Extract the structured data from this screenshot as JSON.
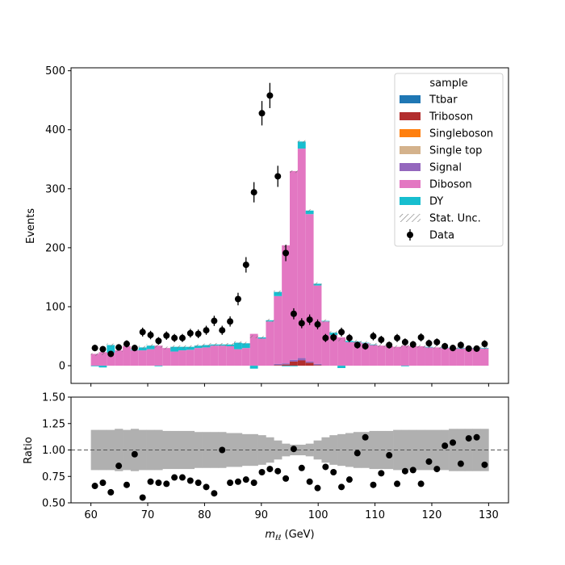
{
  "chart_data": [
    {
      "type": "bar",
      "panel": "main",
      "stacked": true,
      "ylabel": "Events",
      "xlim": [
        56.5,
        133.5
      ],
      "ylim": [
        -30,
        505
      ],
      "yticks": [
        0,
        100,
        200,
        300,
        400,
        500
      ],
      "bin_edges_start": 60,
      "bin_width": 1.4,
      "bin_count": 50,
      "series": [
        {
          "name": "DY",
          "color": "#17becf",
          "values": [
            -1,
            -3,
            13,
            0,
            0,
            1,
            5,
            6,
            -1,
            0,
            8,
            6,
            5,
            4,
            4,
            2,
            2,
            3,
            11,
            8,
            -5,
            2,
            2,
            7,
            -1,
            -1,
            12,
            6,
            3,
            1,
            4,
            -4,
            2,
            1,
            1,
            1,
            0,
            0,
            0,
            -1,
            0,
            0,
            1,
            0,
            1,
            0,
            1,
            0,
            1,
            1
          ]
        },
        {
          "name": "Diboson",
          "color": "#e377c2",
          "values": [
            20,
            23,
            22,
            26,
            33,
            26,
            26,
            28,
            34,
            30,
            24,
            26,
            27,
            30,
            31,
            34,
            34,
            33,
            28,
            30,
            54,
            46,
            75,
            115,
            200,
            320,
            355,
            250,
            133,
            75,
            52,
            48,
            40,
            40,
            38,
            35,
            34,
            33,
            32,
            34,
            33,
            33,
            31,
            31,
            30,
            30,
            29,
            30,
            29,
            29
          ]
        },
        {
          "name": "Signal",
          "color": "#9467bd",
          "values": [
            0,
            0,
            0,
            0,
            0,
            0,
            0,
            0,
            0,
            0,
            0,
            0,
            0,
            0,
            0,
            0,
            0,
            0,
            0,
            0,
            0,
            0,
            0,
            2,
            2,
            3,
            4,
            2,
            2,
            0,
            0,
            0,
            0,
            0,
            0,
            0,
            0,
            0,
            0,
            0,
            0,
            0,
            0,
            0,
            0,
            0,
            0,
            0,
            0,
            0
          ]
        },
        {
          "name": "Single top",
          "color": "#d4b28c",
          "values": [
            0,
            0,
            0,
            0,
            0,
            0,
            0,
            0,
            0,
            0,
            0,
            0,
            0,
            0,
            0,
            0,
            0,
            0,
            0,
            0,
            0,
            0,
            0,
            0,
            0,
            0,
            0,
            0,
            0,
            0,
            0,
            0,
            0,
            0,
            0,
            0,
            0,
            0,
            0,
            0,
            0,
            0,
            0,
            0,
            0,
            0,
            0,
            0,
            0,
            0
          ]
        },
        {
          "name": "Singleboson",
          "color": "#ff7f0e",
          "values": [
            0,
            0,
            0,
            0,
            0,
            0,
            0,
            0,
            0,
            0,
            0,
            0,
            0,
            0,
            0,
            0,
            0,
            0,
            0,
            0,
            0,
            0,
            0,
            0,
            0,
            0,
            0,
            0,
            0,
            0,
            0,
            0,
            0,
            0,
            0,
            0,
            0,
            0,
            0,
            0,
            0,
            0,
            0,
            0,
            0,
            0,
            0,
            0,
            0,
            0
          ]
        },
        {
          "name": "Triboson",
          "color": "#b22e2e",
          "values": [
            0,
            0,
            0,
            0,
            0,
            0,
            0,
            0,
            0,
            0,
            0,
            0,
            0,
            0,
            0,
            0,
            0,
            0,
            0,
            0,
            0,
            0,
            0,
            1,
            2,
            7,
            9,
            5,
            1,
            0,
            0,
            0,
            0,
            0,
            0,
            0,
            0,
            0,
            0,
            0,
            0,
            0,
            0,
            0,
            0,
            0,
            0,
            0,
            0,
            0
          ]
        },
        {
          "name": "Ttbar",
          "color": "#1f77b4",
          "values": [
            0,
            0,
            0,
            0,
            0,
            0,
            0,
            0,
            0,
            0,
            0,
            0,
            0,
            0,
            0,
            0,
            0,
            0,
            0,
            0,
            0,
            0,
            0,
            0,
            0,
            0,
            0,
            0,
            0,
            0,
            0,
            0,
            0,
            0,
            0,
            0,
            0,
            0,
            0,
            0,
            0,
            0,
            0,
            0,
            0,
            0,
            0,
            0,
            0,
            0
          ]
        }
      ],
      "stat_unc": {
        "name": "Stat. Unc.",
        "relative": [
          0.19,
          0.19,
          0.19,
          0.2,
          0.19,
          0.2,
          0.19,
          0.19,
          0.19,
          0.18,
          0.18,
          0.18,
          0.18,
          0.17,
          0.17,
          0.17,
          0.17,
          0.16,
          0.16,
          0.15,
          0.15,
          0.14,
          0.12,
          0.09,
          0.06,
          0.05,
          0.05,
          0.06,
          0.09,
          0.12,
          0.14,
          0.15,
          0.16,
          0.17,
          0.17,
          0.18,
          0.18,
          0.18,
          0.19,
          0.19,
          0.19,
          0.19,
          0.19,
          0.19,
          0.19,
          0.2,
          0.2,
          0.2,
          0.2,
          0.2
        ]
      },
      "data": {
        "name": "Data",
        "x": [
          60.7,
          62.1,
          63.5,
          64.9,
          66.3,
          67.7,
          69.1,
          70.5,
          71.9,
          73.3,
          74.7,
          76.1,
          77.5,
          78.9,
          80.3,
          81.7,
          83.1,
          84.5,
          85.9,
          87.3,
          88.7,
          90.1,
          91.5,
          92.9,
          94.3,
          95.7,
          97.1,
          98.5,
          99.9,
          101.3,
          102.7,
          104.1,
          105.5,
          106.9,
          108.3,
          109.7,
          111.1,
          112.5,
          113.9,
          115.3,
          116.7,
          118.1,
          119.5,
          120.9,
          122.3,
          123.7,
          125.1,
          126.5,
          127.9,
          129.3
        ],
        "y": [
          30,
          28,
          20,
          31,
          37,
          30,
          57,
          52,
          42,
          51,
          47,
          47,
          55,
          54,
          60,
          76,
          60,
          75,
          113,
          171,
          294,
          428,
          458,
          321,
          191,
          88,
          72,
          78,
          70,
          47,
          48,
          57,
          47,
          35,
          33,
          50,
          44,
          35,
          47,
          40,
          36,
          48,
          38,
          40,
          33,
          30,
          35,
          29,
          29,
          37
        ]
      },
      "legend": {
        "title": "sample",
        "position": "top-right",
        "entries": [
          "Ttbar",
          "Triboson",
          "Singleboson",
          "Single top",
          "Signal",
          "Diboson",
          "DY",
          "Stat. Unc.",
          "Data"
        ]
      }
    },
    {
      "type": "scatter",
      "panel": "ratio",
      "xlabel_prefix": "m",
      "xlabel_sub": "ℓℓ",
      "xlabel_unit": "(GeV)",
      "ylabel": "Ratio",
      "xlim": [
        56.5,
        133.5
      ],
      "ylim": [
        0.5,
        1.5
      ],
      "yticks": [
        "0.50",
        "0.75",
        "1.00",
        "1.25",
        "1.50"
      ],
      "xticks": [
        60,
        70,
        80,
        90,
        100,
        110,
        120,
        130
      ],
      "reference_line": 1.0,
      "band_color": "#b0b0b0",
      "x": [
        60.7,
        62.1,
        63.5,
        64.9,
        66.3,
        67.7,
        69.1,
        70.5,
        71.9,
        73.3,
        74.7,
        76.1,
        77.5,
        78.9,
        80.3,
        81.7,
        83.1,
        84.5,
        85.9,
        87.3,
        88.7,
        90.1,
        91.5,
        92.9,
        94.3,
        95.7,
        97.1,
        98.5,
        99.9,
        101.3,
        102.7,
        104.1,
        105.5,
        106.9,
        108.3,
        109.7,
        111.1,
        112.5,
        113.9,
        115.3,
        116.7,
        118.1,
        119.5,
        120.9,
        122.3,
        123.7,
        125.1,
        126.5,
        127.9,
        129.3
      ],
      "y": [
        0.66,
        0.69,
        0.6,
        0.85,
        0.67,
        0.96,
        0.55,
        0.7,
        0.69,
        0.68,
        0.74,
        0.74,
        0.71,
        0.69,
        0.65,
        0.59,
        1.0,
        0.69,
        0.7,
        0.72,
        0.69,
        0.79,
        0.82,
        0.8,
        0.73,
        1.01,
        0.83,
        0.7,
        0.64,
        0.84,
        0.79,
        0.65,
        0.72,
        0.97,
        1.12,
        0.67,
        0.78,
        0.95,
        0.68,
        0.8,
        0.81,
        0.68,
        0.89,
        0.82,
        1.04,
        1.07,
        0.87,
        1.11,
        1.12,
        0.86
      ]
    }
  ]
}
